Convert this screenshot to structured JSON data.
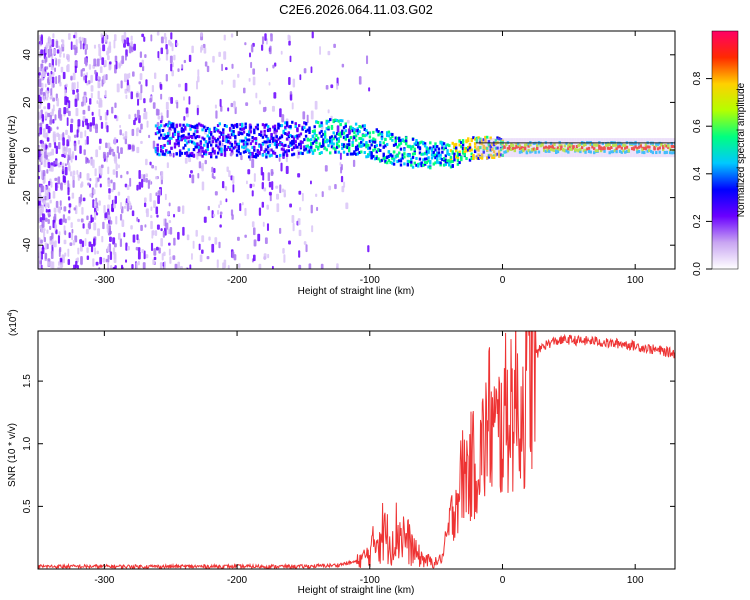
{
  "chart_data": [
    {
      "type": "heatmap",
      "title": "C2E6.2026.064.11.03.G02",
      "xlabel": "Height of straight line (km)",
      "ylabel": "Frequency (Hz)",
      "xlim": [
        -350,
        130
      ],
      "ylim": [
        -50,
        50
      ],
      "xticks": [
        -300,
        -200,
        -100,
        0,
        100
      ],
      "yticks": [
        -40,
        -20,
        0,
        20,
        40
      ],
      "ridge": {
        "x": [
          -260,
          -220,
          -180,
          -150,
          -125,
          -100,
          -80,
          -60,
          -40,
          -20,
          0,
          50,
          100,
          130
        ],
        "y": [
          5,
          4,
          4,
          5,
          6,
          3,
          0,
          -2,
          -2,
          1,
          1,
          1,
          1,
          1
        ]
      },
      "colorbar": {
        "label": "Normalized spectral amplitude",
        "ticks": [
          0.0,
          0.2,
          0.4,
          0.6,
          0.8
        ],
        "range": [
          0,
          1
        ],
        "colors": [
          "#ffffff",
          "#c9a6f2",
          "#6a00ff",
          "#0000ff",
          "#00c8ff",
          "#00ff80",
          "#b4ff00",
          "#ffd000",
          "#ff2a00",
          "#ff0066"
        ]
      },
      "gray_line_color": "#222222"
    },
    {
      "type": "line",
      "xlabel": "Height of straight line (km)",
      "ylabel": "SNR (10 * v/v)",
      "exponent": "(x10",
      "exponent_sup": "4",
      "exponent_close": ")",
      "xlim": [
        -350,
        130
      ],
      "ylim": [
        0,
        1.9
      ],
      "xticks": [
        -300,
        -200,
        -100,
        0,
        100
      ],
      "yticks": [
        0.5,
        1.0,
        1.5
      ],
      "ytick_labels": [
        "0.5",
        "1.0",
        "1.5"
      ],
      "color": "#ee3333",
      "series": [
        {
          "name": "SNR",
          "x": [
            -350,
            -300,
            -250,
            -200,
            -150,
            -125,
            -110,
            -100,
            -95,
            -90,
            -85,
            -80,
            -75,
            -70,
            -65,
            -60,
            -55,
            -50,
            -45,
            -40,
            -35,
            -30,
            -25,
            -20,
            -15,
            -10,
            -5,
            0,
            5,
            10,
            15,
            20,
            25,
            30,
            35,
            40,
            50,
            60,
            70,
            80,
            90,
            100,
            110,
            120,
            130
          ],
          "values": [
            0.02,
            0.02,
            0.02,
            0.02,
            0.02,
            0.03,
            0.06,
            0.12,
            0.25,
            0.3,
            0.22,
            0.3,
            0.28,
            0.2,
            0.12,
            0.08,
            0.06,
            0.05,
            0.1,
            0.35,
            0.55,
            0.75,
            0.8,
            0.85,
            0.95,
            1.2,
            1.05,
            1.15,
            1.3,
            1.35,
            1.25,
            1.55,
            1.7,
            1.78,
            1.8,
            1.82,
            1.83,
            1.82,
            1.82,
            1.8,
            1.8,
            1.78,
            1.76,
            1.74,
            1.72
          ]
        }
      ]
    }
  ]
}
